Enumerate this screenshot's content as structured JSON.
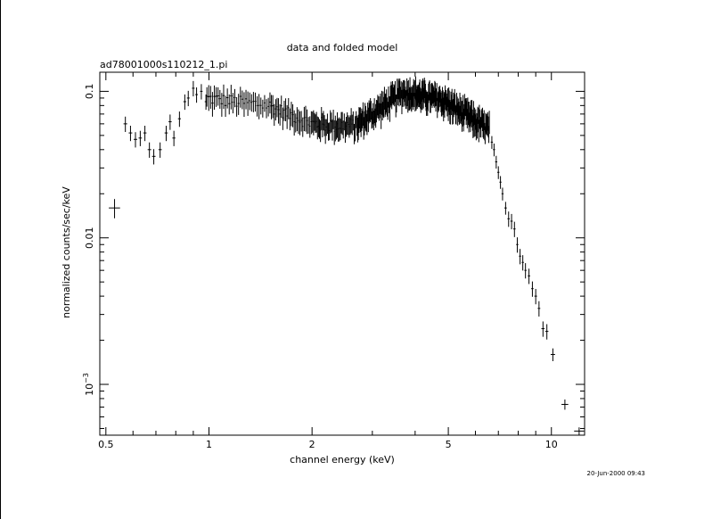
{
  "chart_data": {
    "type": "scatter",
    "title": "data and folded model",
    "subtitle": "ad78001000s110212_1.pi",
    "xlabel": "channel energy (keV)",
    "ylabel": "normalized counts/sec/keV",
    "x_scale": "log",
    "y_scale": "log",
    "xlim": [
      0.48,
      12.5
    ],
    "ylim": [
      0.00045,
      0.135
    ],
    "x_ticks": [
      {
        "value": 0.5,
        "label": "0.5"
      },
      {
        "value": 1,
        "label": "1"
      },
      {
        "value": 2,
        "label": "2"
      },
      {
        "value": 5,
        "label": "5"
      },
      {
        "value": 10,
        "label": "10"
      }
    ],
    "y_ticks": [
      {
        "value": 0.1,
        "label": "0.1"
      },
      {
        "value": 0.01,
        "label": "0.01"
      },
      {
        "value": 0.001,
        "label": "10",
        "exponent": "−3"
      }
    ],
    "grid": false,
    "timestamp": "20-Jun-2000 09:43",
    "series": [
      {
        "points": [
          {
            "x": 0.53,
            "y": 0.016,
            "xerr": 0.02,
            "yerr_frac": 0.15
          },
          {
            "x": 0.57,
            "y": 0.06,
            "xerr": 0.007,
            "yerr_frac": 0.12
          },
          {
            "x": 0.59,
            "y": 0.052,
            "xerr": 0.007,
            "yerr_frac": 0.12
          },
          {
            "x": 0.61,
            "y": 0.047,
            "xerr": 0.007,
            "yerr_frac": 0.12
          },
          {
            "x": 0.63,
            "y": 0.048,
            "xerr": 0.007,
            "yerr_frac": 0.12
          },
          {
            "x": 0.65,
            "y": 0.052,
            "xerr": 0.007,
            "yerr_frac": 0.12
          },
          {
            "x": 0.67,
            "y": 0.04,
            "xerr": 0.008,
            "yerr_frac": 0.12
          },
          {
            "x": 0.69,
            "y": 0.036,
            "xerr": 0.008,
            "yerr_frac": 0.12
          },
          {
            "x": 0.72,
            "y": 0.04,
            "xerr": 0.008,
            "yerr_frac": 0.12
          },
          {
            "x": 0.75,
            "y": 0.052,
            "xerr": 0.008,
            "yerr_frac": 0.12
          },
          {
            "x": 0.77,
            "y": 0.062,
            "xerr": 0.008,
            "yerr_frac": 0.12
          },
          {
            "x": 0.79,
            "y": 0.048,
            "xerr": 0.008,
            "yerr_frac": 0.12
          },
          {
            "x": 0.82,
            "y": 0.065,
            "xerr": 0.008,
            "yerr_frac": 0.12
          },
          {
            "x": 0.85,
            "y": 0.085,
            "xerr": 0.008,
            "yerr_frac": 0.12
          },
          {
            "x": 0.87,
            "y": 0.09,
            "xerr": 0.008,
            "yerr_frac": 0.12
          },
          {
            "x": 0.9,
            "y": 0.105,
            "xerr": 0.008,
            "yerr_frac": 0.12
          },
          {
            "x": 0.92,
            "y": 0.095,
            "xerr": 0.008,
            "yerr_frac": 0.12
          },
          {
            "x": 0.95,
            "y": 0.1,
            "xerr": 0.008,
            "yerr_frac": 0.12
          },
          {
            "x": 0.98,
            "y": 0.085,
            "xerr": 0.008,
            "yerr_frac": 0.12
          }
        ]
      },
      {
        "segments": [
          {
            "x0": 0.98,
            "x1": 1.5,
            "y0": 0.09,
            "y1": 0.08,
            "bins": 34,
            "scatter": 0.1
          },
          {
            "x0": 1.5,
            "x1": 2.0,
            "y0": 0.08,
            "y1": 0.06,
            "bins": 30,
            "scatter": 0.1
          },
          {
            "x0": 2.0,
            "x1": 2.7,
            "y0": 0.06,
            "y1": 0.058,
            "bins": 45,
            "scatter": 0.12
          },
          {
            "x0": 2.7,
            "x1": 3.7,
            "y0": 0.06,
            "y1": 0.1,
            "bins": 70,
            "scatter": 0.13
          },
          {
            "x0": 3.7,
            "x1": 4.8,
            "y0": 0.1,
            "y1": 0.088,
            "bins": 75,
            "scatter": 0.13
          },
          {
            "x0": 4.8,
            "x1": 6.6,
            "y0": 0.088,
            "y1": 0.055,
            "bins": 90,
            "scatter": 0.14
          }
        ],
        "points": [
          {
            "x": 6.7,
            "y": 0.045,
            "xerr": 0.05,
            "yerr_frac": 0.1
          },
          {
            "x": 6.8,
            "y": 0.04,
            "xerr": 0.05,
            "yerr_frac": 0.1
          },
          {
            "x": 6.9,
            "y": 0.033,
            "xerr": 0.05,
            "yerr_frac": 0.1
          },
          {
            "x": 7.0,
            "y": 0.028,
            "xerr": 0.05,
            "yerr_frac": 0.1
          },
          {
            "x": 7.1,
            "y": 0.024,
            "xerr": 0.05,
            "yerr_frac": 0.1
          },
          {
            "x": 7.2,
            "y": 0.02,
            "xerr": 0.05,
            "yerr_frac": 0.1
          },
          {
            "x": 7.35,
            "y": 0.016,
            "xerr": 0.06,
            "yerr_frac": 0.1
          },
          {
            "x": 7.5,
            "y": 0.0135,
            "xerr": 0.06,
            "yerr_frac": 0.12
          },
          {
            "x": 7.65,
            "y": 0.013,
            "xerr": 0.06,
            "yerr_frac": 0.12
          },
          {
            "x": 7.8,
            "y": 0.0115,
            "xerr": 0.06,
            "yerr_frac": 0.12
          },
          {
            "x": 7.95,
            "y": 0.009,
            "xerr": 0.06,
            "yerr_frac": 0.12
          },
          {
            "x": 8.1,
            "y": 0.0075,
            "xerr": 0.06,
            "yerr_frac": 0.12
          },
          {
            "x": 8.25,
            "y": 0.0068,
            "xerr": 0.06,
            "yerr_frac": 0.12
          },
          {
            "x": 8.4,
            "y": 0.006,
            "xerr": 0.06,
            "yerr_frac": 0.12
          },
          {
            "x": 8.6,
            "y": 0.0055,
            "xerr": 0.07,
            "yerr_frac": 0.12
          },
          {
            "x": 8.8,
            "y": 0.0045,
            "xerr": 0.07,
            "yerr_frac": 0.12
          },
          {
            "x": 9.0,
            "y": 0.004,
            "xerr": 0.08,
            "yerr_frac": 0.12
          },
          {
            "x": 9.2,
            "y": 0.0033,
            "xerr": 0.08,
            "yerr_frac": 0.12
          },
          {
            "x": 9.45,
            "y": 0.0024,
            "xerr": 0.1,
            "yerr_frac": 0.12
          },
          {
            "x": 9.7,
            "y": 0.0023,
            "xerr": 0.1,
            "yerr_frac": 0.12
          },
          {
            "x": 10.1,
            "y": 0.0016,
            "xerr": 0.15,
            "yerr_frac": 0.1
          },
          {
            "x": 10.95,
            "y": 0.00073,
            "xerr": 0.25,
            "yerr_frac": 0.08
          },
          {
            "x": 12.05,
            "y": 0.00048,
            "xerr": 0.4,
            "yerr_frac": 0.06
          }
        ]
      }
    ]
  }
}
